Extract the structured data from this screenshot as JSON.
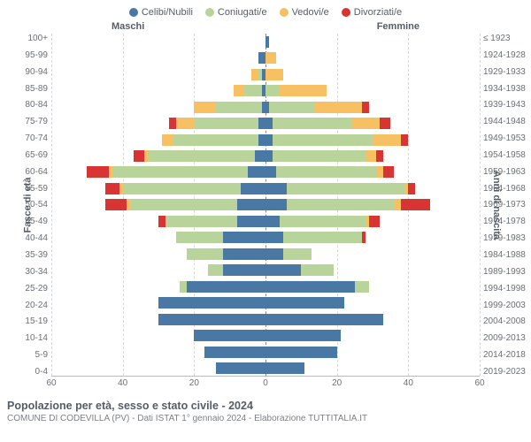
{
  "chart": {
    "type": "population-pyramid",
    "title": "Popolazione per età, sesso e stato civile - 2024",
    "subtitle": "COMUNE DI CODEVILLA (PV) - Dati ISTAT 1° gennaio 2024 - Elaborazione TUTTITALIA.IT",
    "header_left": "Maschi",
    "header_right": "Femmine",
    "yaxis_left_label": "Fasce di età",
    "yaxis_right_label": "Anni di nascita",
    "xlim": 60,
    "xticks": [
      60,
      40,
      20,
      0,
      20,
      40,
      60
    ],
    "legend": [
      {
        "label": "Celibi/Nubili",
        "color": "#4a78a4"
      },
      {
        "label": "Coniugati/e",
        "color": "#b8d49a"
      },
      {
        "label": "Vedovi/e",
        "color": "#f7c062"
      },
      {
        "label": "Divorziati/e",
        "color": "#d93434"
      }
    ],
    "colors": {
      "celibi": "#4a78a4",
      "coniugati": "#b8d49a",
      "vedovi": "#f7c062",
      "divorziati": "#d93434",
      "grid": "#d5d7da",
      "centerline": "#888888",
      "background": "#ffffff",
      "text": "#555d66"
    },
    "age_groups": [
      "100+",
      "95-99",
      "90-94",
      "85-89",
      "80-84",
      "75-79",
      "70-74",
      "65-69",
      "60-64",
      "55-59",
      "50-54",
      "45-49",
      "40-44",
      "35-39",
      "30-34",
      "25-29",
      "20-24",
      "15-19",
      "10-14",
      "5-9",
      "0-4"
    ],
    "birth_years": [
      "≤ 1923",
      "1924-1928",
      "1929-1933",
      "1934-1938",
      "1939-1943",
      "1944-1948",
      "1949-1953",
      "1954-1958",
      "1959-1963",
      "1964-1968",
      "1969-1973",
      "1974-1978",
      "1979-1983",
      "1984-1988",
      "1989-1993",
      "1994-1998",
      "1999-2003",
      "2004-2008",
      "2009-2013",
      "2014-2018",
      "2019-2023"
    ],
    "rows": [
      {
        "m": {
          "c": 0,
          "g": 0,
          "v": 0,
          "d": 0
        },
        "f": {
          "c": 1,
          "g": 0,
          "v": 0,
          "d": 0
        }
      },
      {
        "m": {
          "c": 2,
          "g": 0,
          "v": 0,
          "d": 0
        },
        "f": {
          "c": 0,
          "g": 0,
          "v": 3,
          "d": 0
        }
      },
      {
        "m": {
          "c": 1,
          "g": 1,
          "v": 2,
          "d": 0
        },
        "f": {
          "c": 0,
          "g": 0,
          "v": 5,
          "d": 0
        }
      },
      {
        "m": {
          "c": 1,
          "g": 5,
          "v": 3,
          "d": 0
        },
        "f": {
          "c": 0,
          "g": 4,
          "v": 13,
          "d": 0
        }
      },
      {
        "m": {
          "c": 1,
          "g": 13,
          "v": 6,
          "d": 0
        },
        "f": {
          "c": 1,
          "g": 13,
          "v": 13,
          "d": 2
        }
      },
      {
        "m": {
          "c": 2,
          "g": 18,
          "v": 5,
          "d": 2
        },
        "f": {
          "c": 2,
          "g": 22,
          "v": 8,
          "d": 3
        }
      },
      {
        "m": {
          "c": 2,
          "g": 24,
          "v": 3,
          "d": 0
        },
        "f": {
          "c": 2,
          "g": 28,
          "v": 8,
          "d": 2
        }
      },
      {
        "m": {
          "c": 3,
          "g": 30,
          "v": 1,
          "d": 3
        },
        "f": {
          "c": 2,
          "g": 26,
          "v": 3,
          "d": 2
        }
      },
      {
        "m": {
          "c": 5,
          "g": 38,
          "v": 1,
          "d": 6
        },
        "f": {
          "c": 3,
          "g": 28,
          "v": 2,
          "d": 3
        }
      },
      {
        "m": {
          "c": 7,
          "g": 33,
          "v": 1,
          "d": 4
        },
        "f": {
          "c": 6,
          "g": 33,
          "v": 1,
          "d": 2
        }
      },
      {
        "m": {
          "c": 8,
          "g": 30,
          "v": 1,
          "d": 6
        },
        "f": {
          "c": 6,
          "g": 30,
          "v": 2,
          "d": 8
        }
      },
      {
        "m": {
          "c": 8,
          "g": 20,
          "v": 0,
          "d": 2
        },
        "f": {
          "c": 4,
          "g": 24,
          "v": 1,
          "d": 3
        }
      },
      {
        "m": {
          "c": 12,
          "g": 13,
          "v": 0,
          "d": 0
        },
        "f": {
          "c": 5,
          "g": 22,
          "v": 0,
          "d": 1
        }
      },
      {
        "m": {
          "c": 12,
          "g": 10,
          "v": 0,
          "d": 0
        },
        "f": {
          "c": 5,
          "g": 8,
          "v": 0,
          "d": 0
        }
      },
      {
        "m": {
          "c": 12,
          "g": 4,
          "v": 0,
          "d": 0
        },
        "f": {
          "c": 10,
          "g": 9,
          "v": 0,
          "d": 0
        }
      },
      {
        "m": {
          "c": 22,
          "g": 2,
          "v": 0,
          "d": 0
        },
        "f": {
          "c": 25,
          "g": 4,
          "v": 0,
          "d": 0
        }
      },
      {
        "m": {
          "c": 30,
          "g": 0,
          "v": 0,
          "d": 0
        },
        "f": {
          "c": 22,
          "g": 0,
          "v": 0,
          "d": 0
        }
      },
      {
        "m": {
          "c": 30,
          "g": 0,
          "v": 0,
          "d": 0
        },
        "f": {
          "c": 33,
          "g": 0,
          "v": 0,
          "d": 0
        }
      },
      {
        "m": {
          "c": 20,
          "g": 0,
          "v": 0,
          "d": 0
        },
        "f": {
          "c": 21,
          "g": 0,
          "v": 0,
          "d": 0
        }
      },
      {
        "m": {
          "c": 17,
          "g": 0,
          "v": 0,
          "d": 0
        },
        "f": {
          "c": 20,
          "g": 0,
          "v": 0,
          "d": 0
        }
      },
      {
        "m": {
          "c": 14,
          "g": 0,
          "v": 0,
          "d": 0
        },
        "f": {
          "c": 11,
          "g": 0,
          "v": 0,
          "d": 0
        }
      }
    ],
    "fontsize_axis": 10,
    "fontsize_legend": 11,
    "fontsize_title": 12.5,
    "bar_height_ratio": 0.7
  }
}
